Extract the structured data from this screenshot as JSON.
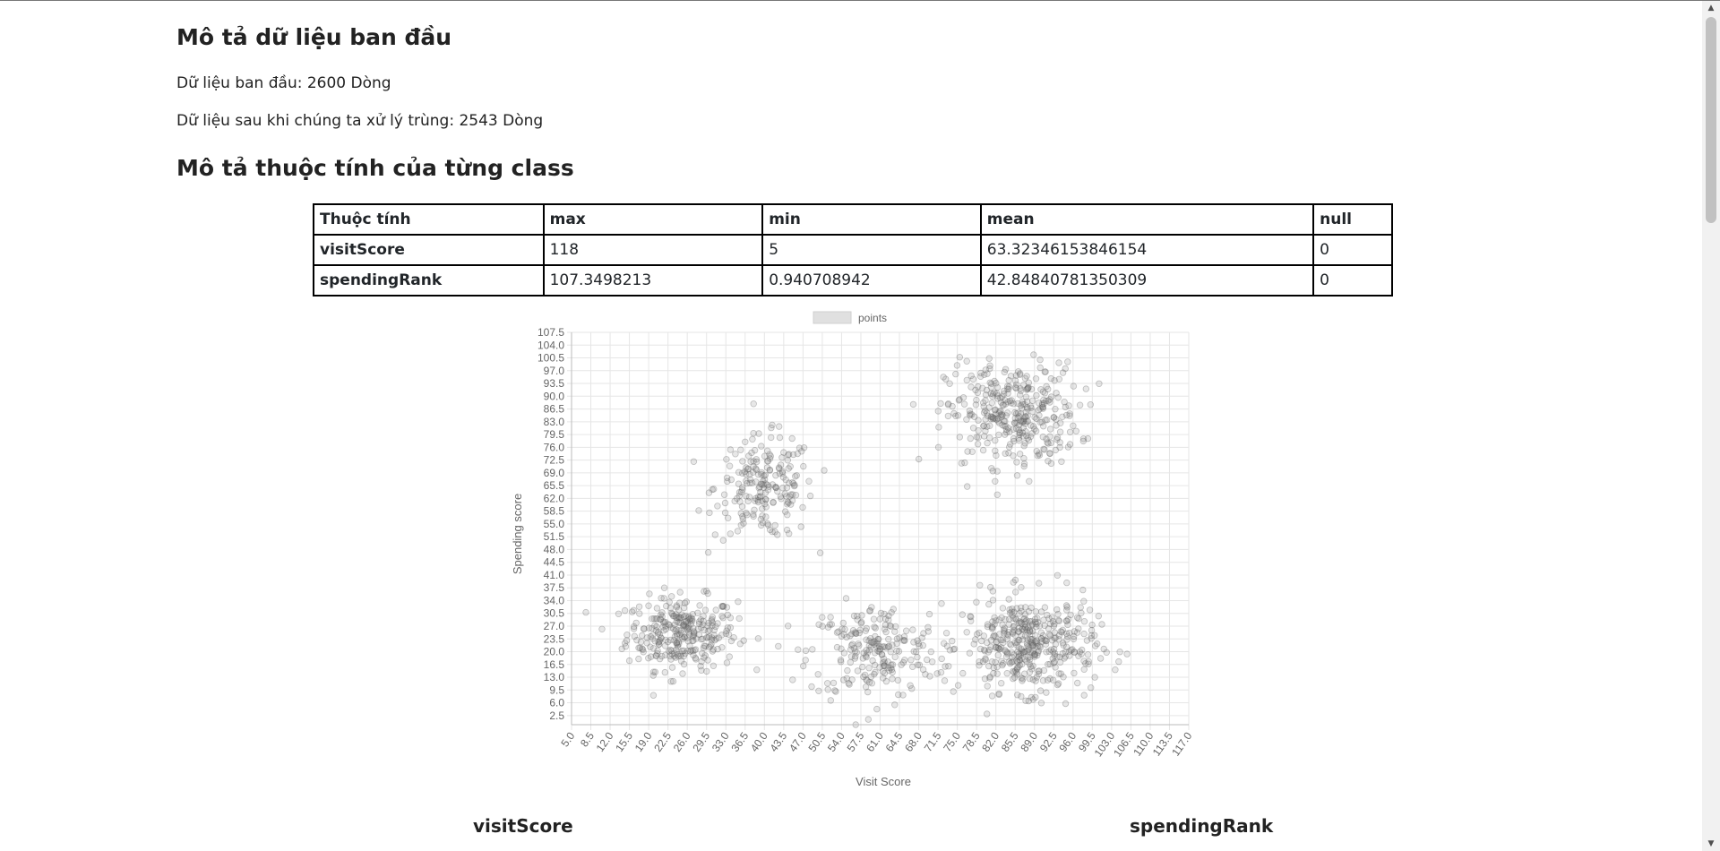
{
  "headings": {
    "initial": "Mô tả dữ liệu ban đầu",
    "attributes": "Mô tả thuộc tính của từng class"
  },
  "stats": {
    "initial_rows": "Dữ liệu ban đầu: 2600 Dòng",
    "dedup_rows": "Dữ liệu sau khi chúng ta xử lý trùng: 2543 Dòng"
  },
  "table": {
    "headers": [
      "Thuộc tính",
      "max",
      "min",
      "mean",
      "null"
    ],
    "rows": [
      [
        "visitScore",
        "118",
        "5",
        "63.32346153846154",
        "0"
      ],
      [
        "spendingRank",
        "107.3498213",
        "0.940708942",
        "42.84840781350309",
        "0"
      ]
    ]
  },
  "chart_data": {
    "type": "scatter",
    "legend": [
      "points"
    ],
    "legend_position": "top",
    "xlabel": "Visit Score",
    "ylabel": "Spending score",
    "xlim": [
      5.0,
      117.0
    ],
    "ylim": [
      0,
      107.5
    ],
    "x_ticks": [
      "5.0",
      "8.5",
      "12.0",
      "15.5",
      "19.0",
      "22.5",
      "26.0",
      "29.5",
      "33.0",
      "36.5",
      "40.0",
      "43.5",
      "47.0",
      "50.5",
      "54.0",
      "57.5",
      "61.0",
      "64.5",
      "68.0",
      "71.5",
      "75.0",
      "78.5",
      "82.0",
      "85.5",
      "89.0",
      "92.5",
      "96.0",
      "99.5",
      "103.0",
      "106.5",
      "110.0",
      "113.5",
      "117.0"
    ],
    "y_ticks": [
      "2.5",
      "6.0",
      "9.5",
      "13.0",
      "16.5",
      "20.0",
      "23.5",
      "27.0",
      "30.5",
      "34.0",
      "37.5",
      "41.0",
      "44.5",
      "48.0",
      "51.5",
      "55.0",
      "58.5",
      "62.0",
      "65.5",
      "69.0",
      "72.5",
      "76.0",
      "79.5",
      "83.0",
      "86.5",
      "90.0",
      "93.5",
      "97.0",
      "100.5",
      "104.0",
      "107.5"
    ],
    "grid": true,
    "series": [
      {
        "name": "points",
        "clusters": [
          {
            "center": [
              25,
              25
            ],
            "spread": [
              5,
              5
            ],
            "count": 300
          },
          {
            "center": [
              40,
              65
            ],
            "spread": [
              4.5,
              7
            ],
            "count": 200
          },
          {
            "center": [
              60,
              20
            ],
            "spread": [
              6,
              6.5
            ],
            "count": 220
          },
          {
            "center": [
              85,
              85
            ],
            "spread": [
              6,
              7
            ],
            "count": 350
          },
          {
            "center": [
              88,
              22
            ],
            "spread": [
              6,
              6.5
            ],
            "count": 420
          }
        ]
      }
    ]
  },
  "sub_titles": {
    "left": "visitScore",
    "right": "spendingRank"
  },
  "colors": {
    "point_fill": "rgba(120,120,120,0.18)",
    "point_stroke": "rgba(90,90,90,0.35)",
    "grid": "#e6e6e6",
    "axis_text": "#666666"
  }
}
